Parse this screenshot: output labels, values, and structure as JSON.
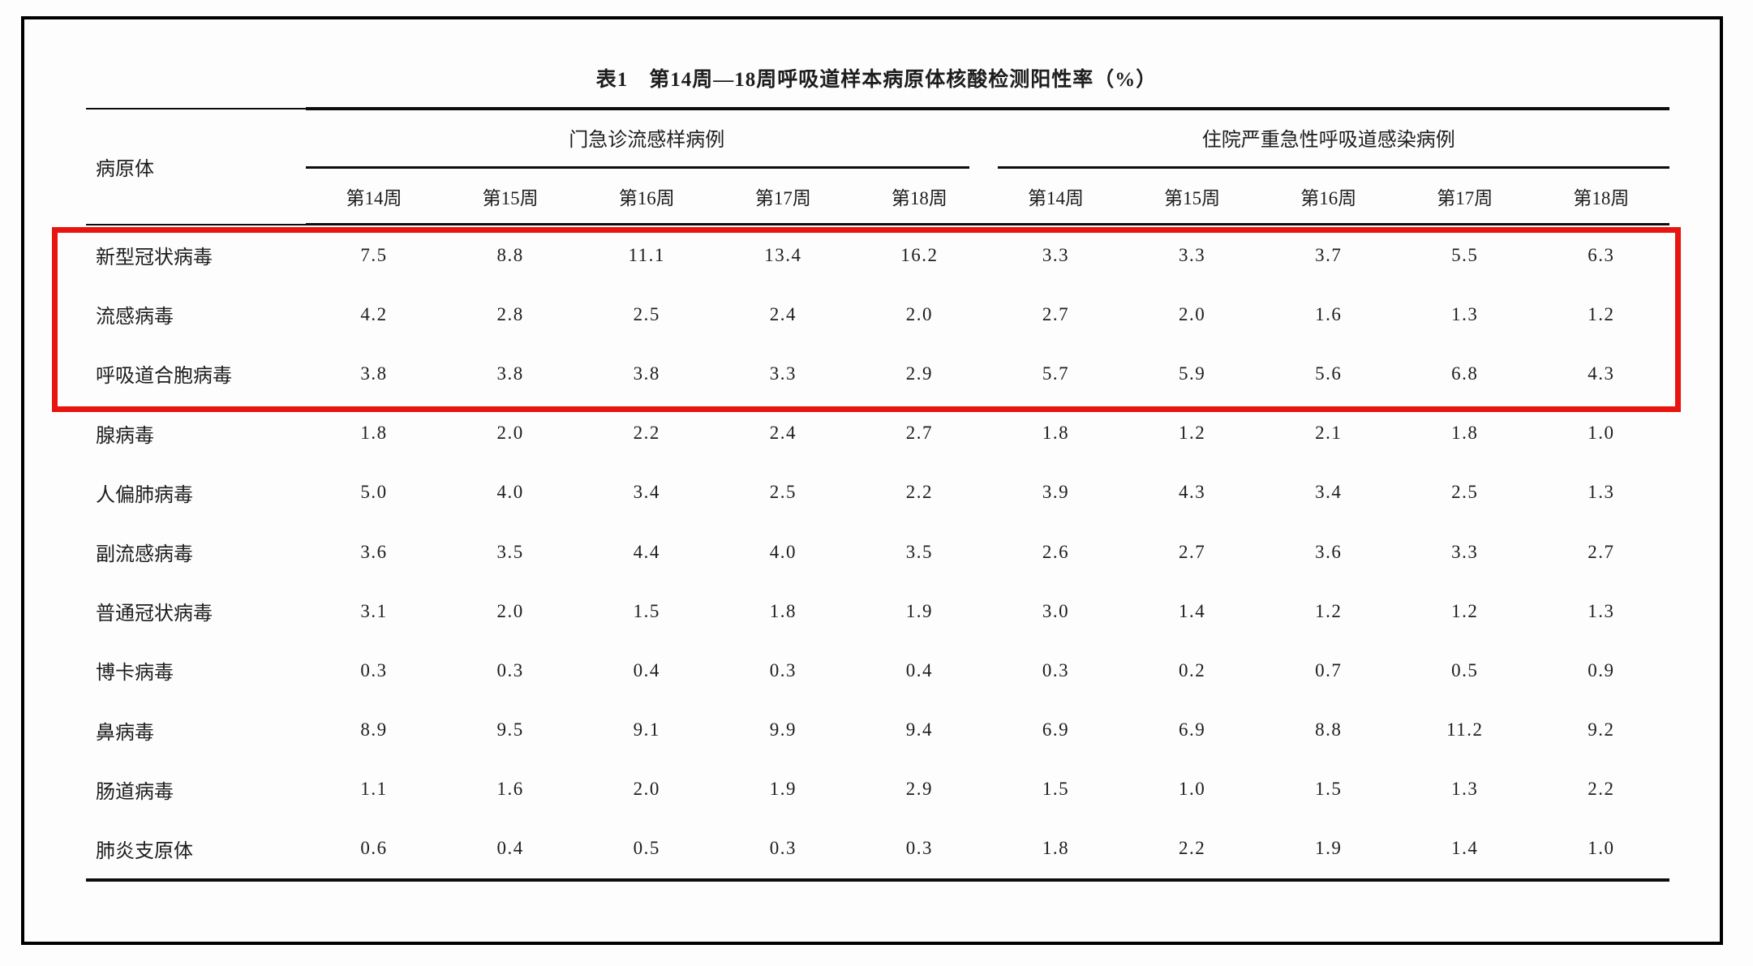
{
  "page": {
    "title": "表1　第14周—18周呼吸道样本病原体核酸检测阳性率（%）"
  },
  "table": {
    "pathogen_header": "病原体",
    "groups": [
      {
        "label": "门急诊流感样病例",
        "weeks": [
          "第14周",
          "第15周",
          "第16周",
          "第17周",
          "第18周"
        ]
      },
      {
        "label": "住院严重急性呼吸道感染病例",
        "weeks": [
          "第14周",
          "第15周",
          "第16周",
          "第17周",
          "第18周"
        ]
      }
    ],
    "rows": [
      {
        "pathogen": "新型冠状病毒",
        "outpatient": [
          "7.5",
          "8.8",
          "11.1",
          "13.4",
          "16.2"
        ],
        "inpatient": [
          "3.3",
          "3.3",
          "3.7",
          "5.5",
          "6.3"
        ],
        "highlighted": true
      },
      {
        "pathogen": "流感病毒",
        "outpatient": [
          "4.2",
          "2.8",
          "2.5",
          "2.4",
          "2.0"
        ],
        "inpatient": [
          "2.7",
          "2.0",
          "1.6",
          "1.3",
          "1.2"
        ],
        "highlighted": true
      },
      {
        "pathogen": "呼吸道合胞病毒",
        "outpatient": [
          "3.8",
          "3.8",
          "3.8",
          "3.3",
          "2.9"
        ],
        "inpatient": [
          "5.7",
          "5.9",
          "5.6",
          "6.8",
          "4.3"
        ],
        "highlighted": true
      },
      {
        "pathogen": "腺病毒",
        "outpatient": [
          "1.8",
          "2.0",
          "2.2",
          "2.4",
          "2.7"
        ],
        "inpatient": [
          "1.8",
          "1.2",
          "2.1",
          "1.8",
          "1.0"
        ],
        "highlighted": false
      },
      {
        "pathogen": "人偏肺病毒",
        "outpatient": [
          "5.0",
          "4.0",
          "3.4",
          "2.5",
          "2.2"
        ],
        "inpatient": [
          "3.9",
          "4.3",
          "3.4",
          "2.5",
          "1.3"
        ],
        "highlighted": false
      },
      {
        "pathogen": "副流感病毒",
        "outpatient": [
          "3.6",
          "3.5",
          "4.4",
          "4.0",
          "3.5"
        ],
        "inpatient": [
          "2.6",
          "2.7",
          "3.6",
          "3.3",
          "2.7"
        ],
        "highlighted": false
      },
      {
        "pathogen": "普通冠状病毒",
        "outpatient": [
          "3.1",
          "2.0",
          "1.5",
          "1.8",
          "1.9"
        ],
        "inpatient": [
          "3.0",
          "1.4",
          "1.2",
          "1.2",
          "1.3"
        ],
        "highlighted": false
      },
      {
        "pathogen": "博卡病毒",
        "outpatient": [
          "0.3",
          "0.3",
          "0.4",
          "0.3",
          "0.4"
        ],
        "inpatient": [
          "0.3",
          "0.2",
          "0.7",
          "0.5",
          "0.9"
        ],
        "highlighted": false
      },
      {
        "pathogen": "鼻病毒",
        "outpatient": [
          "8.9",
          "9.5",
          "9.1",
          "9.9",
          "9.4"
        ],
        "inpatient": [
          "6.9",
          "6.9",
          "8.8",
          "11.2",
          "9.2"
        ],
        "highlighted": false
      },
      {
        "pathogen": "肠道病毒",
        "outpatient": [
          "1.1",
          "1.6",
          "2.0",
          "1.9",
          "2.9"
        ],
        "inpatient": [
          "1.5",
          "1.0",
          "1.5",
          "1.3",
          "2.2"
        ],
        "highlighted": false
      },
      {
        "pathogen": "肺炎支原体",
        "outpatient": [
          "0.6",
          "0.4",
          "0.5",
          "0.3",
          "0.3"
        ],
        "inpatient": [
          "1.8",
          "2.2",
          "1.9",
          "1.4",
          "1.0"
        ],
        "highlighted": false
      }
    ],
    "highlight": {
      "color": "#e8140f",
      "rows": [
        "新型冠状病毒",
        "流感病毒",
        "呼吸道合胞病毒"
      ]
    }
  }
}
